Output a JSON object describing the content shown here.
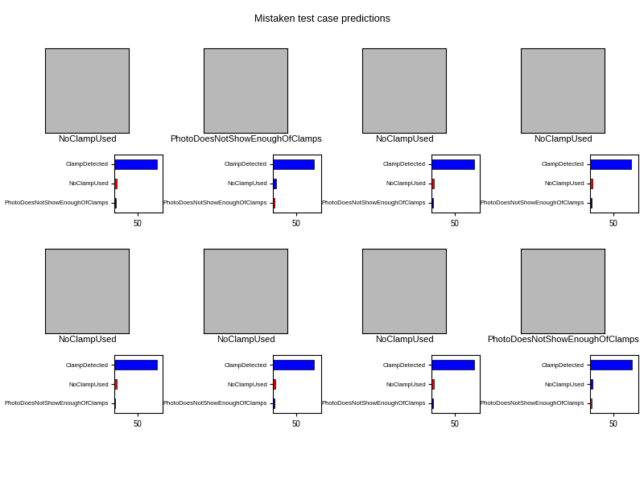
{
  "title": "Mistaken test case predictions",
  "chart_data": [
    {
      "type": "bar",
      "orientation": "horizontal",
      "title": "NoClampUsed",
      "categories": [
        "ClampDetected",
        "NoClampUsed",
        "PhotoDoesNotShowEnoughOfClamps"
      ],
      "values": [
        92,
        5,
        3
      ],
      "colors": [
        "#0000ff",
        "#ff0000",
        "#00008b"
      ],
      "xlim": [
        0,
        105
      ],
      "xticks": [
        50
      ]
    },
    {
      "type": "bar",
      "orientation": "horizontal",
      "title": "PhotoDoesNotShowEnoughOfClamps",
      "categories": [
        "ClampDetected",
        "NoClampUsed",
        "PhotoDoesNotShowEnoughOfClamps"
      ],
      "values": [
        90,
        7,
        3
      ],
      "colors": [
        "#0000ff",
        "#0000ff",
        "#ff0000"
      ],
      "xlim": [
        0,
        105
      ],
      "xticks": [
        50
      ]
    },
    {
      "type": "bar",
      "orientation": "horizontal",
      "title": "NoClampUsed",
      "categories": [
        "ClampDetected",
        "NoClampUsed",
        "PhotoDoesNotShowEnoughOfClamps"
      ],
      "values": [
        92,
        5,
        3
      ],
      "colors": [
        "#0000ff",
        "#ff0000",
        "#00008b"
      ],
      "xlim": [
        0,
        105
      ],
      "xticks": [
        50
      ]
    },
    {
      "type": "bar",
      "orientation": "horizontal",
      "title": "NoClampUsed",
      "categories": [
        "ClampDetected",
        "NoClampUsed",
        "PhotoDoesNotShowEnoughOfClamps"
      ],
      "values": [
        90,
        6,
        4
      ],
      "colors": [
        "#0000ff",
        "#ff0000",
        "#00008b"
      ],
      "xlim": [
        0,
        105
      ],
      "xticks": [
        50
      ]
    },
    {
      "type": "bar",
      "orientation": "horizontal",
      "title": "NoClampUsed",
      "categories": [
        "ClampDetected",
        "NoClampUsed",
        "PhotoDoesNotShowEnoughOfClamps"
      ],
      "values": [
        93,
        5,
        2
      ],
      "colors": [
        "#0000ff",
        "#ff0000",
        "#00008b"
      ],
      "xlim": [
        0,
        105
      ],
      "xticks": [
        50
      ]
    },
    {
      "type": "bar",
      "orientation": "horizontal",
      "title": "NoClampUsed",
      "categories": [
        "ClampDetected",
        "NoClampUsed",
        "PhotoDoesNotShowEnoughOfClamps"
      ],
      "values": [
        90,
        6,
        4
      ],
      "colors": [
        "#0000ff",
        "#ff0000",
        "#00008b"
      ],
      "xlim": [
        0,
        105
      ],
      "xticks": [
        50
      ]
    },
    {
      "type": "bar",
      "orientation": "horizontal",
      "title": "NoClampUsed",
      "categories": [
        "ClampDetected",
        "NoClampUsed",
        "PhotoDoesNotShowEnoughOfClamps"
      ],
      "values": [
        92,
        5,
        3
      ],
      "colors": [
        "#0000ff",
        "#ff0000",
        "#00008b"
      ],
      "xlim": [
        0,
        105
      ],
      "xticks": [
        50
      ]
    },
    {
      "type": "bar",
      "orientation": "horizontal",
      "title": "PhotoDoesNotShowEnoughOfClamps",
      "categories": [
        "ClampDetected",
        "NoClampUsed",
        "PhotoDoesNotShowEnoughOfClamps"
      ],
      "values": [
        91,
        5,
        4
      ],
      "colors": [
        "#0000ff",
        "#0000ff",
        "#ff0000"
      ],
      "xlim": [
        0,
        105
      ],
      "xticks": [
        50
      ]
    }
  ]
}
